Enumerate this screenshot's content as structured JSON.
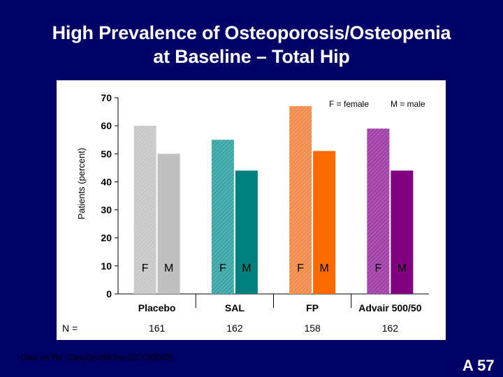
{
  "slide": {
    "title_line1": "High Prevalence of Osteoporosis/Osteopenia",
    "title_line2": "at Baseline – Total Hip",
    "footnote": "Data on file. GlaxoSmithKline (SCO30003).",
    "slide_number": "A 57"
  },
  "chart_data": {
    "type": "bar",
    "title": "",
    "ylabel": "Patients (percent)",
    "xlabel": "",
    "ylim": [
      0,
      70
    ],
    "yticks": [
      0,
      10,
      20,
      30,
      40,
      50,
      60,
      70
    ],
    "grid": false,
    "legend": {
      "female": "F = female",
      "male": "M = male",
      "placement": "top-right"
    },
    "bar_letters": [
      "F",
      "M"
    ],
    "n_label": "N =",
    "categories": [
      "Placebo",
      "SAL",
      "FP",
      "Advair 500/50"
    ],
    "n_values": [
      "161",
      "162",
      "158",
      "162"
    ],
    "series": [
      {
        "name": "F",
        "values": [
          60,
          55,
          67,
          59
        ]
      },
      {
        "name": "M",
        "values": [
          50,
          44,
          51,
          44
        ]
      }
    ],
    "colors": {
      "female": [
        "#C8C8C8",
        "#3CA5A5",
        "#F28C4C",
        "#A040A8"
      ],
      "male": [
        "#C0C0C0",
        "#007F7F",
        "#FF6A00",
        "#800080"
      ]
    }
  }
}
